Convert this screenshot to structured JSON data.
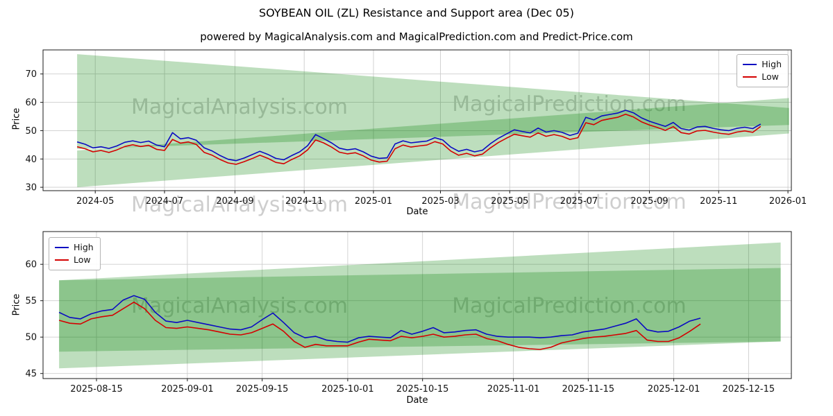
{
  "title": "SOYBEAN OIL (ZL) Resistance and Support area (Dec 05)",
  "subtitle": "powered by MagicalAnalysis.com and MagicalPrediction.com and Predict-Price.com",
  "watermarks": {
    "left": "MagicalAnalysis.com",
    "right": "MagicalPrediction.com"
  },
  "legend": {
    "high": "High",
    "low": "Low"
  },
  "colors": {
    "high": "#0a0ac2",
    "low": "#d40000",
    "band": "rgba(0,128,0,0.26)",
    "grid": "#cdcdcd"
  },
  "chart_data": [
    {
      "type": "line",
      "name": "main-history",
      "xlabel": "Date",
      "ylabel": "Price",
      "x_range": [
        "2024-03-16",
        "2026-01-04"
      ],
      "y_range": [
        28.8,
        78.5
      ],
      "y_ticks": [
        30,
        40,
        50,
        60,
        70
      ],
      "x_ticks": [
        {
          "date": "2024-05-01",
          "label": "2024-05"
        },
        {
          "date": "2024-07-01",
          "label": "2024-07"
        },
        {
          "date": "2024-09-01",
          "label": "2024-09"
        },
        {
          "date": "2024-11-01",
          "label": "2024-11"
        },
        {
          "date": "2025-01-01",
          "label": "2025-01"
        },
        {
          "date": "2025-03-01",
          "label": "2025-03"
        },
        {
          "date": "2025-05-01",
          "label": "2025-05"
        },
        {
          "date": "2025-07-01",
          "label": "2025-07"
        },
        {
          "date": "2025-09-01",
          "label": "2025-09"
        },
        {
          "date": "2025-11-01",
          "label": "2025-11"
        },
        {
          "date": "2026-01-01",
          "label": "2026-01"
        }
      ],
      "legend_position": "top-right",
      "bands": [
        {
          "name": "resistance",
          "points": [
            [
              "2024-04-15",
              77.0
            ],
            [
              "2026-01-02",
              58.0
            ],
            [
              "2026-01-02",
              52.0
            ],
            [
              "2024-04-15",
              43.5
            ]
          ]
        },
        {
          "name": "support",
          "points": [
            [
              "2024-04-15",
              43.0
            ],
            [
              "2026-01-02",
              61.5
            ],
            [
              "2026-01-02",
              49.0
            ],
            [
              "2024-04-15",
              30.0
            ]
          ]
        }
      ],
      "series": [
        {
          "name": "High",
          "color_key": "high",
          "start": "2024-04-15",
          "step_days": 7,
          "values": [
            46.0,
            45.2,
            43.9,
            44.3,
            43.7,
            44.6,
            45.9,
            46.4,
            45.8,
            46.3,
            44.9,
            44.3,
            49.3,
            47.1,
            47.5,
            46.6,
            43.9,
            42.8,
            41.2,
            39.9,
            39.4,
            40.3,
            41.5,
            42.7,
            41.6,
            40.2,
            39.7,
            41.2,
            42.5,
            44.7,
            48.6,
            47.2,
            45.7,
            43.8,
            43.2,
            43.6,
            42.5,
            41.0,
            40.2,
            40.4,
            45.3,
            46.4,
            45.7,
            46.0,
            46.3,
            47.5,
            46.7,
            44.2,
            42.7,
            43.4,
            42.5,
            43.1,
            45.4,
            47.3,
            48.8,
            50.3,
            49.7,
            49.2,
            50.9,
            49.5,
            50.0,
            49.4,
            48.3,
            49.1,
            54.7,
            53.8,
            55.2,
            55.7,
            56.2,
            57.2,
            56.3,
            54.5,
            53.3,
            52.4,
            51.5,
            52.9,
            50.7,
            50.2,
            51.3,
            51.5,
            50.8,
            50.3,
            50.0,
            50.8,
            51.2,
            50.7,
            52.3
          ]
        },
        {
          "name": "Low",
          "color_key": "low",
          "start": "2024-04-15",
          "step_days": 7,
          "values": [
            44.3,
            43.6,
            42.5,
            43.0,
            42.3,
            43.2,
            44.4,
            45.0,
            44.4,
            44.8,
            43.4,
            43.0,
            46.9,
            45.6,
            46.0,
            45.1,
            42.3,
            41.3,
            39.8,
            38.6,
            38.1,
            39.0,
            40.1,
            41.3,
            40.2,
            38.8,
            38.3,
            39.8,
            41.1,
            43.2,
            46.7,
            45.7,
            44.2,
            42.4,
            41.8,
            42.2,
            41.1,
            39.6,
            38.9,
            39.2,
            43.6,
            44.9,
            44.2,
            44.6,
            44.9,
            46.1,
            45.3,
            42.8,
            41.3,
            42.0,
            41.1,
            41.7,
            43.9,
            45.8,
            47.3,
            48.7,
            48.2,
            47.7,
            49.2,
            48.0,
            48.6,
            48.0,
            46.9,
            47.5,
            52.8,
            52.1,
            53.6,
            54.2,
            54.7,
            55.8,
            54.8,
            53.1,
            52.0,
            51.1,
            50.1,
            51.4,
            49.3,
            48.8,
            49.9,
            50.1,
            49.5,
            49.0,
            48.7,
            49.5,
            49.9,
            49.4,
            51.5
          ]
        }
      ]
    },
    {
      "type": "line",
      "name": "recent-detail",
      "xlabel": "Date",
      "ylabel": "Price",
      "x_range": [
        "2025-08-05",
        "2025-12-23"
      ],
      "y_range": [
        44.3,
        64.5
      ],
      "y_ticks": [
        45,
        50,
        55,
        60
      ],
      "x_ticks": [
        {
          "date": "2025-08-15",
          "label": "2025-08-15"
        },
        {
          "date": "2025-09-01",
          "label": "2025-09-01"
        },
        {
          "date": "2025-09-15",
          "label": "2025-09-15"
        },
        {
          "date": "2025-10-01",
          "label": "2025-10-01"
        },
        {
          "date": "2025-10-15",
          "label": "2025-10-15"
        },
        {
          "date": "2025-11-01",
          "label": "2025-11-01"
        },
        {
          "date": "2025-11-15",
          "label": "2025-11-15"
        },
        {
          "date": "2025-12-01",
          "label": "2025-12-01"
        },
        {
          "date": "2025-12-15",
          "label": "2025-12-15"
        }
      ],
      "legend_position": "top-left",
      "bands": [
        {
          "name": "envelope",
          "points": [
            [
              "2025-08-08",
              57.8
            ],
            [
              "2025-12-21",
              63.0
            ],
            [
              "2025-12-21",
              49.4
            ],
            [
              "2025-08-08",
              45.7
            ]
          ]
        },
        {
          "name": "inner",
          "points": [
            [
              "2025-08-08",
              57.8
            ],
            [
              "2025-12-21",
              59.5
            ],
            [
              "2025-12-21",
              49.4
            ],
            [
              "2025-08-08",
              48.0
            ]
          ]
        }
      ],
      "series": [
        {
          "name": "High",
          "color_key": "high",
          "start": "2025-08-08",
          "step_days": 2,
          "values": [
            53.4,
            52.7,
            52.5,
            53.2,
            53.6,
            53.8,
            55.1,
            55.7,
            55.2,
            53.4,
            52.2,
            52.0,
            52.3,
            52.0,
            51.7,
            51.4,
            51.1,
            51.0,
            51.4,
            52.4,
            53.3,
            52.0,
            50.6,
            49.9,
            50.1,
            49.6,
            49.4,
            49.3,
            49.9,
            50.1,
            50.0,
            49.9,
            50.9,
            50.4,
            50.8,
            51.3,
            50.6,
            50.7,
            50.9,
            51.0,
            50.4,
            50.1,
            50.0,
            50.0,
            50.0,
            49.9,
            50.0,
            50.2,
            50.3,
            50.7,
            50.9,
            51.1,
            51.5,
            51.9,
            52.5,
            51.0,
            50.7,
            50.8,
            51.4,
            52.2,
            52.6
          ]
        },
        {
          "name": "Low",
          "color_key": "low",
          "start": "2025-08-08",
          "step_days": 2,
          "values": [
            52.3,
            51.9,
            51.8,
            52.5,
            52.8,
            53.0,
            53.9,
            54.8,
            53.9,
            52.3,
            51.3,
            51.2,
            51.4,
            51.2,
            51.0,
            50.7,
            50.4,
            50.3,
            50.6,
            51.2,
            51.8,
            50.8,
            49.4,
            48.6,
            49.0,
            48.8,
            48.8,
            48.8,
            49.3,
            49.7,
            49.6,
            49.5,
            50.1,
            49.9,
            50.1,
            50.4,
            50.0,
            50.1,
            50.3,
            50.4,
            49.8,
            49.5,
            49.0,
            48.6,
            48.4,
            48.3,
            48.6,
            49.2,
            49.5,
            49.8,
            50.0,
            50.1,
            50.3,
            50.5,
            50.9,
            49.6,
            49.4,
            49.4,
            49.9,
            50.8,
            51.8
          ]
        }
      ]
    }
  ]
}
